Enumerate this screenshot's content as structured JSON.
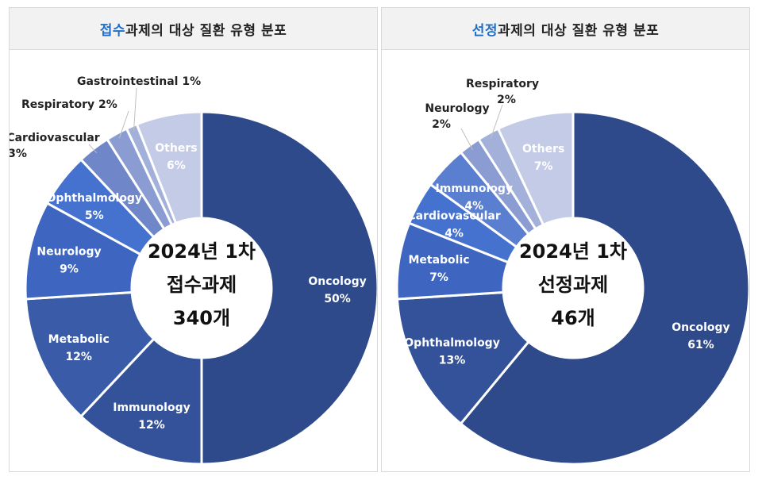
{
  "chart_data": [
    {
      "type": "pie",
      "title_highlight": "접수",
      "title_rest": "과제의 대상 질환 유형 분포",
      "center_text": [
        "2024년 1차",
        "접수과제",
        "340개"
      ],
      "slices": [
        {
          "label": "Oncology",
          "value": 50,
          "pct": "50%",
          "color": "#2f4a8a",
          "label_color": "#ffffff"
        },
        {
          "label": "Immunology",
          "value": 12,
          "pct": "12%",
          "color": "#34529a",
          "label_color": "#ffffff"
        },
        {
          "label": "Metabolic",
          "value": 12,
          "pct": "12%",
          "color": "#3a5ca8",
          "label_color": "#ffffff"
        },
        {
          "label": "Neurology",
          "value": 9,
          "pct": "9%",
          "color": "#3e66c0",
          "label_color": "#ffffff"
        },
        {
          "label": "Ophthalmology",
          "value": 5,
          "pct": "5%",
          "color": "#4672cf",
          "label_color": "#ffffff"
        },
        {
          "label": "Cardiovascular",
          "value": 3,
          "pct": "3%",
          "color": "#6f86c8",
          "label_color": "#222222"
        },
        {
          "label": "Respiratory",
          "value": 2,
          "pct": "2%",
          "color": "#8a9cd2",
          "label_color": "#222222"
        },
        {
          "label": "Gastrointestinal",
          "value": 1,
          "pct": "1%",
          "color": "#a2b0da",
          "label_color": "#222222"
        },
        {
          "label": "Others",
          "value": 6,
          "pct": "6%",
          "color": "#c4cbe6",
          "label_color": "#ffffff"
        }
      ]
    },
    {
      "type": "pie",
      "title_highlight": "선정",
      "title_rest": "과제의 대상 질환 유형 분포",
      "center_text": [
        "2024년 1차",
        "선정과제",
        "46개"
      ],
      "slices": [
        {
          "label": "Oncology",
          "value": 61,
          "pct": "61%",
          "color": "#2f4a8a",
          "label_color": "#ffffff"
        },
        {
          "label": "Ophthalmology",
          "value": 13,
          "pct": "13%",
          "color": "#34529a",
          "label_color": "#ffffff"
        },
        {
          "label": "Metabolic",
          "value": 7,
          "pct": "7%",
          "color": "#3e66c0",
          "label_color": "#ffffff"
        },
        {
          "label": "Cardiovascular",
          "value": 4,
          "pct": "4%",
          "color": "#4672cf",
          "label_color": "#ffffff"
        },
        {
          "label": "Immunology",
          "value": 4,
          "pct": "4%",
          "color": "#5b7fd0",
          "label_color": "#ffffff"
        },
        {
          "label": "Neurology",
          "value": 2,
          "pct": "2%",
          "color": "#8a9cd2",
          "label_color": "#222222"
        },
        {
          "label": "Respiratory",
          "value": 2,
          "pct": "2%",
          "color": "#a2b0da",
          "label_color": "#222222"
        },
        {
          "label": "Others",
          "value": 7,
          "pct": "7%",
          "color": "#c4cbe6",
          "label_color": "#ffffff"
        }
      ]
    }
  ]
}
